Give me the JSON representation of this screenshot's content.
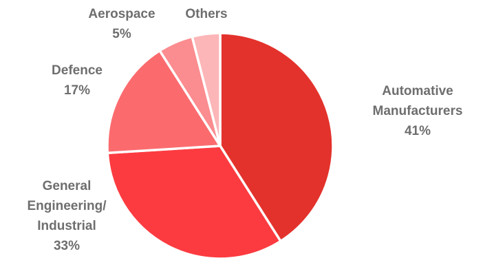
{
  "chart_data": {
    "type": "pie",
    "title": "",
    "legend": "none",
    "slices": [
      {
        "label": "Automative Manufacturers",
        "lines": [
          "Automative",
          "Manufacturers"
        ],
        "percent_label": "41%",
        "value": 41,
        "color": "#e3322c"
      },
      {
        "label": "General Engineering/ Industrial",
        "lines": [
          "General",
          "Engineering/",
          "Industrial"
        ],
        "percent_label": "33%",
        "value": 33,
        "color": "#fc3b40"
      },
      {
        "label": "Defence",
        "lines": [
          "Defence"
        ],
        "percent_label": "17%",
        "value": 17,
        "color": "#fb6b6e"
      },
      {
        "label": "Aerospace",
        "lines": [
          "Aerospace"
        ],
        "percent_label": "5%",
        "value": 5,
        "color": "#fb8c8f"
      },
      {
        "label": "Others",
        "lines": [
          "Others"
        ],
        "percent_label": "",
        "value": 4,
        "color": "#fcb6b8"
      }
    ]
  }
}
